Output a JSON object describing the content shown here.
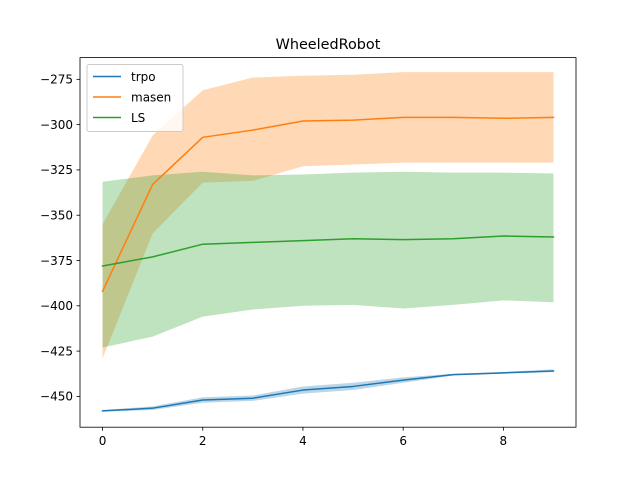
{
  "chart_data": {
    "type": "line",
    "title": "WheeledRobot",
    "xlabel": "",
    "ylabel": "",
    "xlim": [
      -0.45,
      9.45
    ],
    "ylim": [
      -467,
      -263
    ],
    "xticks": [
      0,
      2,
      4,
      6,
      8
    ],
    "yticks": [
      -450,
      -425,
      -400,
      -375,
      -350,
      -325,
      -300,
      -275
    ],
    "grid": false,
    "legend_position": "top-left",
    "x": [
      0,
      1,
      2,
      3,
      4,
      5,
      6,
      7,
      8,
      9
    ],
    "series": [
      {
        "name": "trpo",
        "color": "#1f77b4",
        "values": [
          -458,
          -456.5,
          -452,
          -451,
          -446.5,
          -444.5,
          -441,
          -438,
          -437,
          -436
        ],
        "lower": [
          -458.5,
          -457.5,
          -453.5,
          -452.5,
          -448.5,
          -446.5,
          -442.5,
          -438.5,
          -437.5,
          -436.5
        ],
        "upper": [
          -457.5,
          -455.5,
          -450.5,
          -449.5,
          -444.5,
          -442.5,
          -439.5,
          -437.5,
          -436.5,
          -435.0
        ]
      },
      {
        "name": "masen",
        "color": "#ff7f0e",
        "values": [
          -392,
          -333,
          -307,
          -303,
          -298,
          -297.5,
          -296,
          -296,
          -296.5,
          -296
        ],
        "lower": [
          -429,
          -360,
          -332,
          -331,
          -323,
          -322,
          -321,
          -321,
          -321,
          -321
        ],
        "upper": [
          -355,
          -306,
          -281,
          -274,
          -273,
          -272.5,
          -271,
          -271,
          -271,
          -271
        ]
      },
      {
        "name": "LS",
        "color": "#2ca02c",
        "values": [
          -378,
          -373,
          -366,
          -365,
          -364,
          -363,
          -363.5,
          -363,
          -361.5,
          -362
        ],
        "lower": [
          -423,
          -417,
          -406,
          -402,
          -400,
          -399.5,
          -401.5,
          -399.5,
          -397,
          -398
        ],
        "upper": [
          -331.5,
          -328,
          -326,
          -328,
          -327.5,
          -326.5,
          -326,
          -326.5,
          -326.5,
          -327
        ]
      }
    ]
  }
}
